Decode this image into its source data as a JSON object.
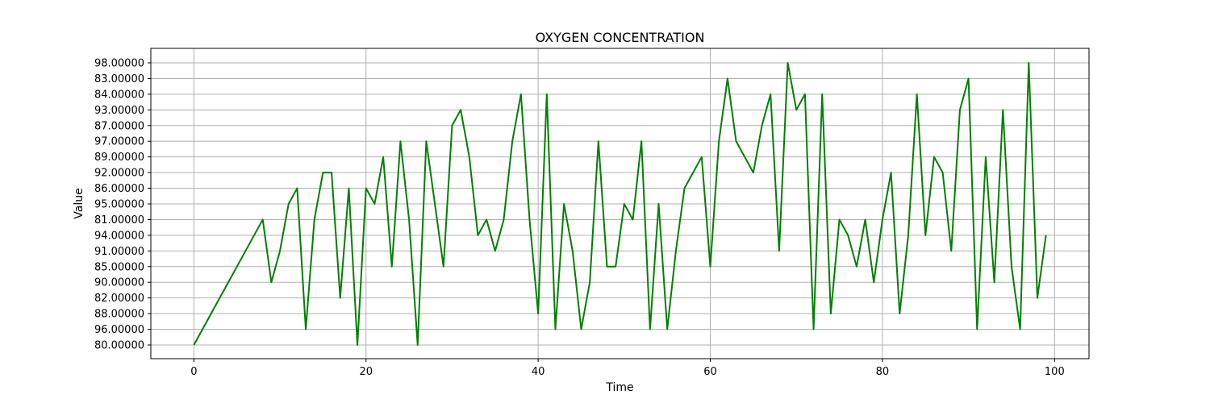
{
  "chart_data": {
    "type": "line",
    "title": "OXYGEN CONCENTRATION",
    "xlabel": "Time",
    "ylabel": "Value",
    "xlim": [
      -5,
      104
    ],
    "x_ticks": [
      0,
      20,
      40,
      60,
      80,
      100
    ],
    "y_categories": [
      "80.00000",
      "96.00000",
      "88.00000",
      "82.00000",
      "90.00000",
      "85.00000",
      "91.00000",
      "94.00000",
      "81.00000",
      "95.00000",
      "86.00000",
      "92.00000",
      "89.00000",
      "97.00000",
      "87.00000",
      "93.00000",
      "84.00000",
      "83.00000",
      "98.00000"
    ],
    "grid": true,
    "series": [
      {
        "color": "#008000",
        "x": [
          0,
          8,
          9,
          10,
          11,
          12,
          13,
          14,
          15,
          16,
          17,
          18,
          19,
          20,
          21,
          22,
          23,
          24,
          25,
          26,
          27,
          28,
          29,
          30,
          31,
          32,
          33,
          34,
          35,
          36,
          37,
          38,
          39,
          40,
          41,
          42,
          43,
          44,
          45,
          46,
          47,
          48,
          49,
          50,
          51,
          52,
          53,
          54,
          55,
          56,
          57,
          58,
          59,
          60,
          61,
          62,
          63,
          64,
          65,
          66,
          67,
          68,
          69,
          70,
          71,
          72,
          73,
          74,
          75,
          76,
          77,
          78,
          79,
          80,
          81,
          82,
          83,
          84,
          85,
          86,
          87,
          88,
          89,
          90,
          91,
          92,
          93,
          94,
          95,
          96,
          97,
          98,
          99
        ],
        "y": [
          "80.00000",
          "81.00000",
          "90.00000",
          "91.00000",
          "95.00000",
          "86.00000",
          "96.00000",
          "81.00000",
          "92.00000",
          "92.00000",
          "82.00000",
          "86.00000",
          "80.00000",
          "86.00000",
          "95.00000",
          "89.00000",
          "85.00000",
          "97.00000",
          "81.00000",
          "80.00000",
          "97.00000",
          "95.00000",
          "85.00000",
          "87.00000",
          "93.00000",
          "89.00000",
          "94.00000",
          "81.00000",
          "91.00000",
          "81.00000",
          "97.00000",
          "84.00000",
          "81.00000",
          "88.00000",
          "84.00000",
          "96.00000",
          "95.00000",
          "91.00000",
          "96.00000",
          "90.00000",
          "97.00000",
          "85.00000",
          "85.00000",
          "95.00000",
          "81.00000",
          "97.00000",
          "96.00000",
          "95.00000",
          "96.00000",
          "91.00000",
          "86.00000",
          "92.00000",
          "89.00000",
          "85.00000",
          "97.00000",
          "83.00000",
          "97.00000",
          "89.00000",
          "92.00000",
          "87.00000",
          "84.00000",
          "91.00000",
          "98.00000",
          "93.00000",
          "84.00000",
          "96.00000",
          "84.00000",
          "88.00000",
          "81.00000",
          "94.00000",
          "85.00000",
          "81.00000",
          "90.00000",
          "81.00000",
          "92.00000",
          "88.00000",
          "94.00000",
          "84.00000",
          "94.00000",
          "89.00000",
          "92.00000",
          "91.00000",
          "93.00000",
          "83.00000",
          "96.00000",
          "89.00000",
          "90.00000",
          "93.00000",
          "85.00000",
          "96.00000",
          "98.00000",
          "82.00000",
          "94.00000"
        ]
      }
    ]
  }
}
